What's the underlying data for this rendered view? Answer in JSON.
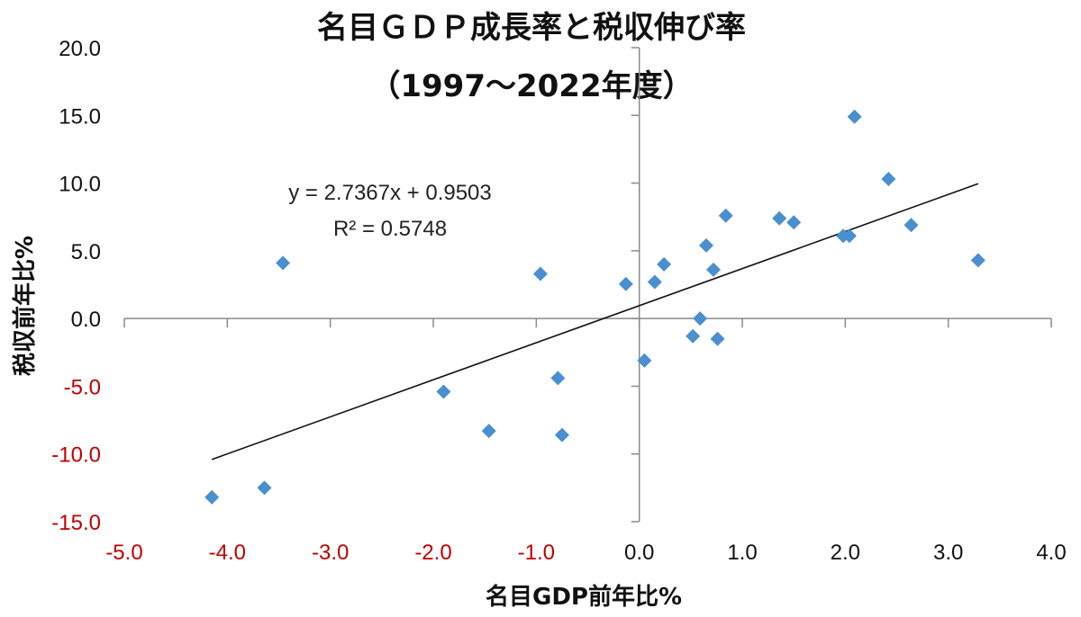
{
  "chart_data": {
    "type": "scatter",
    "title": "名目ＧＤＰ成長率と税収伸び率",
    "subtitle": "（1997～2022年度）",
    "xlabel": "名目GDP前年比%",
    "ylabel": "税収前年比%",
    "xlim": [
      -5.0,
      4.0
    ],
    "ylim": [
      -15.0,
      20.0
    ],
    "xticks": [
      "-5.0",
      "-4.0",
      "-3.0",
      "-2.0",
      "-1.0",
      "0.0",
      "1.0",
      "2.0",
      "3.0",
      "4.0"
    ],
    "yticks": [
      "20.0",
      "15.0",
      "10.0",
      "5.0",
      "0.0",
      "-5.0",
      "-10.0",
      "-15.0"
    ],
    "grid": false,
    "negative_tick_color": "#c00000",
    "marker_color": "#4a8fcf",
    "marker": "diamond",
    "points": [
      [
        -4.15,
        -13.2
      ],
      [
        -3.64,
        -12.5
      ],
      [
        -3.46,
        4.1
      ],
      [
        -1.9,
        -5.4
      ],
      [
        -1.46,
        -8.3
      ],
      [
        -0.96,
        3.3
      ],
      [
        -0.79,
        -4.4
      ],
      [
        -0.75,
        -8.6
      ],
      [
        -0.13,
        2.55
      ],
      [
        0.05,
        -3.1
      ],
      [
        0.15,
        2.7
      ],
      [
        0.24,
        4.0
      ],
      [
        0.52,
        -1.3
      ],
      [
        0.59,
        0.0
      ],
      [
        0.65,
        5.4
      ],
      [
        0.72,
        3.6
      ],
      [
        0.76,
        -1.5
      ],
      [
        0.84,
        7.6
      ],
      [
        1.36,
        7.4
      ],
      [
        1.5,
        7.1
      ],
      [
        1.98,
        6.1
      ],
      [
        2.04,
        6.1
      ],
      [
        2.09,
        14.9
      ],
      [
        2.42,
        10.3
      ],
      [
        2.64,
        6.9
      ],
      [
        3.29,
        4.3
      ]
    ],
    "trendline": {
      "type": "linear",
      "slope": 2.7367,
      "intercept": 0.9503,
      "x_range": [
        -4.15,
        3.29
      ],
      "equation": "y = 2.7367x + 0.9503",
      "r2": "R² = 0.5748"
    }
  }
}
